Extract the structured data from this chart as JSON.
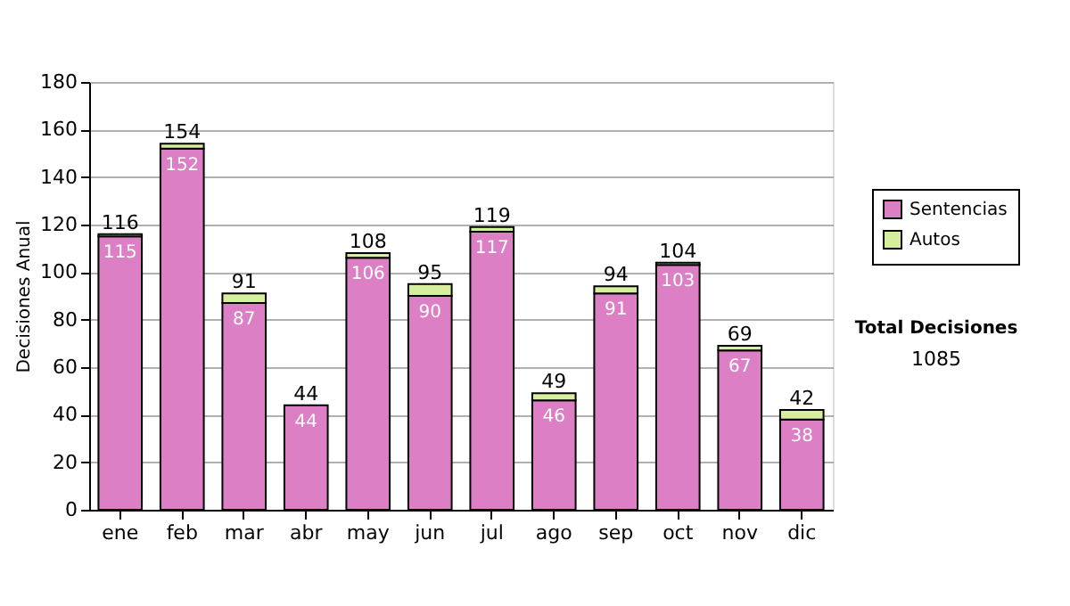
{
  "chart_data": {
    "type": "bar",
    "stacked": true,
    "ylabel": "Decisiones Anual",
    "categories": [
      "ene",
      "feb",
      "mar",
      "abr",
      "may",
      "jun",
      "jul",
      "ago",
      "sep",
      "oct",
      "nov",
      "dic"
    ],
    "series": [
      {
        "name": "Sentencias",
        "color": "#dd7fc4",
        "values": [
          115,
          152,
          87,
          44,
          106,
          90,
          117,
          46,
          91,
          103,
          67,
          38
        ],
        "value_labels": [
          "115",
          "152",
          "87",
          "44",
          "106",
          "90",
          "117",
          "46",
          "91",
          "103",
          "67",
          "38"
        ]
      },
      {
        "name": "Autos",
        "color": "#d6ee9e",
        "values": [
          1,
          2,
          4,
          0,
          2,
          5,
          2,
          3,
          3,
          1,
          2,
          4
        ]
      }
    ],
    "totals": [
      "116",
      "154",
      "91",
      "44",
      "108",
      "95",
      "119",
      "49",
      "94",
      "104",
      "69",
      "42"
    ],
    "ylim": [
      0,
      180
    ],
    "yticks": [
      0,
      20,
      40,
      60,
      80,
      100,
      120,
      140,
      160,
      180
    ],
    "grid": "y",
    "legend": "right",
    "annotations": [
      "Total Decisiones",
      "1085"
    ]
  }
}
